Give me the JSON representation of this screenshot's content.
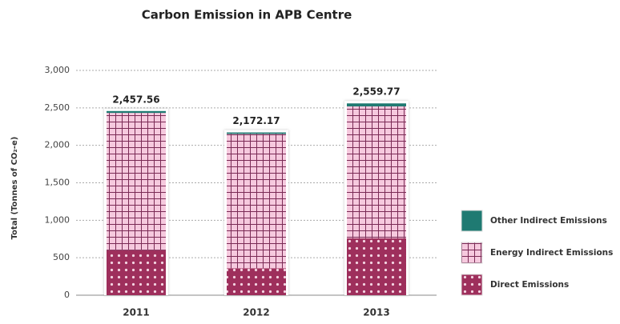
{
  "chart_data": {
    "type": "stacked_bar",
    "title": "Carbon Emission in APB Centre",
    "y_label": "Total (Tonnes of CO₂-e)",
    "categories": [
      "2011",
      "2012",
      "2013"
    ],
    "series": [
      {
        "name": "Direct Emissions",
        "color": "#9e2f5c",
        "values": [
          600,
          360,
          760
        ]
      },
      {
        "name": "Energy Indirect Emissions",
        "color": "#f6c9de",
        "values": [
          1832.56,
          1792.17,
          1759.77
        ]
      },
      {
        "name": "Other Indirect Emissions",
        "color": "#1f7a72",
        "values": [
          25,
          20,
          40
        ]
      }
    ],
    "totals": {
      "values": [
        2457.56,
        2172.17,
        2559.77
      ],
      "value_labels": [
        "2,457.56",
        "2,172.17",
        "2,559.77"
      ]
    },
    "ylim": [
      0,
      3000
    ],
    "yticks": [
      0,
      {
        "value": 500,
        "label": "500"
      },
      {
        "value": 1000,
        "label": "1,000"
      },
      {
        "value": 1500,
        "label": "1,500"
      },
      {
        "value": 2000,
        "label": "2,000"
      },
      {
        "value": 2500,
        "label": "2,500"
      },
      {
        "value": 3000,
        "label": "3,000"
      }
    ],
    "grid": true,
    "legend": "right"
  }
}
